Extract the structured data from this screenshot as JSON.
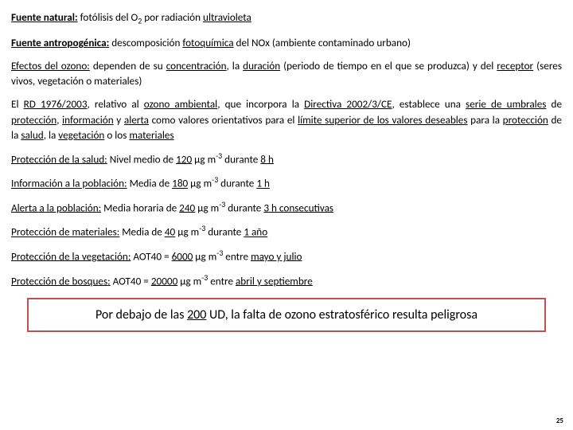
{
  "lines": {
    "l1a": "Fuente natural:",
    "l1b": " fotólisis del O",
    "l1c": "2",
    "l1d": " por radiación ",
    "l1e": "ultravioleta",
    "l2a": "Fuente antropogénica:",
    "l2b": " descomposición ",
    "l2c": "fotoquímica",
    "l2d": " del NOx (ambiente contaminado urbano)",
    "l3a": "Efectos del ozono:",
    "l3b": " dependen de su ",
    "l3c": "concentración",
    "l3d": ", la ",
    "l3e": "duración",
    "l3f": " (periodo de tiempo en el que se produzca) y del ",
    "l3g": "receptor",
    "l3h": " (seres vivos, vegetación o materiales)",
    "l4a": "El ",
    "l4b": "RD 1976/2003",
    "l4c": ", relativo al ",
    "l4d": "ozono ambiental",
    "l4e": ", que incorpora la ",
    "l4f": "Directiva 2002/3/CE",
    "l4g": ", establece una ",
    "l4h": "serie de umbrales",
    "l4i": " de ",
    "l4j": "protección",
    "l4k": ", ",
    "l4l": "información",
    "l4m": " y ",
    "l4n": "alerta",
    "l4o": " como valores orientativos para el ",
    "l4p": "límite superior de los valores deseables",
    "l4q": " para la ",
    "l4r": "protección",
    "l4s": " de la ",
    "l4t": "salud",
    "l4u": ", la ",
    "l4v": "vegetación",
    "l4w": " o los ",
    "l4x": "materiales",
    "l5a": "Protección de la salud:",
    "l5b": " Nivel medio de ",
    "l5c": "120",
    "l5d": " μg m",
    "l5e": "-3",
    "l5f": " durante ",
    "l5g": "8 h",
    "l6a": "Información a la población:",
    "l6b": " Media de ",
    "l6c": "180",
    "l6d": " μg m",
    "l6e": "-3",
    "l6f": " durante ",
    "l6g": "1 h",
    "l7a": "Alerta a la población:",
    "l7b": " Media horaria de ",
    "l7c": "240",
    "l7d": " μg m",
    "l7e": "-3",
    "l7f": " durante ",
    "l7g": "3 h consecutivas",
    "l8a": "Protección de materiales:",
    "l8b": " Media de ",
    "l8c": "40",
    "l8d": " μg m",
    "l8e": "-3",
    "l8f": " durante ",
    "l8g": "1 año",
    "l9a": "Protección de la vegetación:",
    "l9b": " AOT40 = ",
    "l9c": "6000",
    "l9d": " μg m",
    "l9e": "-3",
    "l9f": " entre ",
    "l9g": "mayo y julio",
    "l10a": "Protección de bosques:",
    "l10b": " AOT40 = ",
    "l10c": "20000",
    "l10d": " μg m",
    "l10e": "-3",
    "l10f": " entre ",
    "l10g": "abril y septiembre",
    "boxA": "Por debajo de las ",
    "boxB": "200",
    "boxC": " UD, la falta de ozono estratosférico resulta peligrosa",
    "pagenum": "25"
  },
  "colors": {
    "box_border": "#c0504d",
    "text": "#000000",
    "bg": "#ffffff"
  },
  "font_sizes": {
    "body_pt": 13.2,
    "highlight_pt": 16,
    "pagenum_pt": 9
  }
}
